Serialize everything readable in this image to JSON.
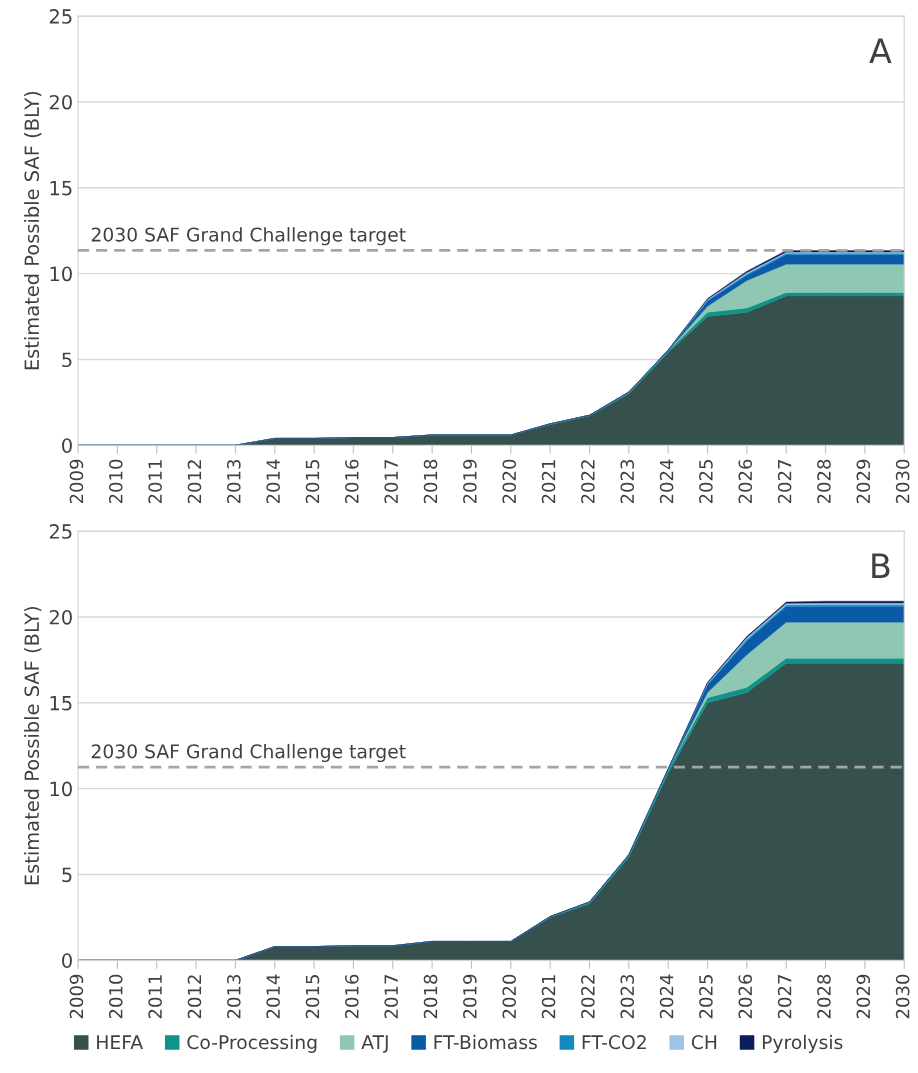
{
  "chart_data": [
    {
      "type": "area",
      "stacked": true,
      "ylabel": "Estimated Possible SAF (BLY)",
      "annotations": [
        "A"
      ],
      "categories": [
        "2009",
        "2010",
        "2011",
        "2012",
        "2013",
        "2014",
        "2015",
        "2016",
        "2017",
        "2018",
        "2019",
        "2020",
        "2021",
        "2022",
        "2023",
        "2024",
        "2025",
        "2026",
        "2027",
        "2028",
        "2029",
        "2030"
      ],
      "ylim": [
        0,
        25
      ],
      "yticks": [
        0,
        5,
        10,
        15,
        20,
        25
      ],
      "grid": "y",
      "legend": "bottom",
      "ref_lines": [
        {
          "axis": "y",
          "value": 11.35,
          "label": "2030 SAF Grand Challenge target",
          "color": "#a6a6a6",
          "line_style": "dashed"
        }
      ],
      "series": [
        {
          "name": "HEFA",
          "color": "#36504e",
          "values": [
            0,
            0,
            0,
            0,
            0,
            0.4,
            0.4,
            0.45,
            0.45,
            0.6,
            0.6,
            0.6,
            1.2,
            1.7,
            3.0,
            5.4,
            7.5,
            7.75,
            8.7,
            8.7,
            8.7,
            8.7
          ]
        },
        {
          "name": "Co-Processing",
          "color": "#0e9488",
          "values": [
            0,
            0,
            0,
            0,
            0,
            0,
            0,
            0,
            0,
            0,
            0,
            0,
            0.05,
            0.05,
            0.1,
            0.1,
            0.25,
            0.25,
            0.2,
            0.2,
            0.2,
            0.2
          ]
        },
        {
          "name": "ATJ",
          "color": "#8fc8b2",
          "values": [
            0,
            0,
            0,
            0,
            0,
            0,
            0,
            0,
            0,
            0,
            0,
            0,
            0,
            0,
            0,
            0,
            0.35,
            1.6,
            1.65,
            1.65,
            1.65,
            1.65
          ]
        },
        {
          "name": "FT-Biomass",
          "color": "#0a5aa8",
          "values": [
            0,
            0,
            0,
            0,
            0,
            0,
            0,
            0,
            0,
            0,
            0,
            0,
            0,
            0,
            0,
            0.05,
            0.3,
            0.3,
            0.55,
            0.55,
            0.55,
            0.55
          ]
        },
        {
          "name": "FT-CO2",
          "color": "#1688c0",
          "values": [
            0,
            0,
            0,
            0,
            0,
            0,
            0,
            0,
            0,
            0,
            0,
            0,
            0,
            0,
            0,
            0,
            0.05,
            0.08,
            0.08,
            0.08,
            0.08,
            0.08
          ]
        },
        {
          "name": "CH",
          "color": "#9dc3e6",
          "values": [
            0,
            0,
            0,
            0,
            0,
            0,
            0,
            0,
            0,
            0,
            0,
            0,
            0,
            0,
            0,
            0,
            0.05,
            0.08,
            0.08,
            0.08,
            0.08,
            0.08
          ]
        },
        {
          "name": "Pyrolysis",
          "color": "#0b1f5c",
          "values": [
            0,
            0,
            0,
            0,
            0,
            0,
            0,
            0,
            0,
            0,
            0,
            0,
            0,
            0,
            0,
            0,
            0.05,
            0.08,
            0.08,
            0.08,
            0.08,
            0.08
          ]
        }
      ]
    },
    {
      "type": "area",
      "stacked": true,
      "ylabel": "Estimated Possible SAF (BLY)",
      "annotations": [
        "B"
      ],
      "categories": [
        "2009",
        "2010",
        "2011",
        "2012",
        "2013",
        "2014",
        "2015",
        "2016",
        "2017",
        "2018",
        "2019",
        "2020",
        "2021",
        "2022",
        "2023",
        "2024",
        "2025",
        "2026",
        "2027",
        "2028",
        "2029",
        "2030"
      ],
      "ylim": [
        0,
        25
      ],
      "yticks": [
        0,
        5,
        10,
        15,
        20,
        25
      ],
      "grid": "y",
      "legend": "bottom",
      "ref_lines": [
        {
          "axis": "y",
          "value": 11.25,
          "label": "2030 SAF Grand Challenge target",
          "color": "#a6a6a6",
          "line_style": "dashed"
        }
      ],
      "series": [
        {
          "name": "HEFA",
          "color": "#36504e",
          "values": [
            0,
            0,
            0,
            0,
            0,
            0.8,
            0.8,
            0.85,
            0.85,
            1.1,
            1.1,
            1.1,
            2.5,
            3.3,
            6.0,
            10.9,
            15.0,
            15.6,
            17.3,
            17.3,
            17.3,
            17.3
          ]
        },
        {
          "name": "Co-Processing",
          "color": "#0e9488",
          "values": [
            0,
            0,
            0,
            0,
            0,
            0,
            0,
            0,
            0,
            0,
            0,
            0,
            0.05,
            0.1,
            0.15,
            0.2,
            0.3,
            0.3,
            0.3,
            0.3,
            0.3,
            0.3
          ]
        },
        {
          "name": "ATJ",
          "color": "#8fc8b2",
          "values": [
            0,
            0,
            0,
            0,
            0,
            0,
            0,
            0,
            0,
            0,
            0,
            0,
            0,
            0,
            0,
            0,
            0.3,
            1.9,
            2.1,
            2.1,
            2.1,
            2.1
          ]
        },
        {
          "name": "FT-Biomass",
          "color": "#0a5aa8",
          "values": [
            0,
            0,
            0,
            0,
            0,
            0,
            0,
            0,
            0,
            0,
            0,
            0,
            0,
            0,
            0,
            0.05,
            0.45,
            0.8,
            0.9,
            0.9,
            0.9,
            0.9
          ]
        },
        {
          "name": "FT-CO2",
          "color": "#1688c0",
          "values": [
            0,
            0,
            0,
            0,
            0,
            0,
            0,
            0,
            0,
            0,
            0,
            0,
            0,
            0,
            0,
            0,
            0.05,
            0.1,
            0.1,
            0.12,
            0.12,
            0.12
          ]
        },
        {
          "name": "CH",
          "color": "#9dc3e6",
          "values": [
            0,
            0,
            0,
            0,
            0,
            0,
            0,
            0,
            0,
            0,
            0,
            0,
            0,
            0,
            0,
            0,
            0.05,
            0.1,
            0.1,
            0.1,
            0.1,
            0.1
          ]
        },
        {
          "name": "Pyrolysis",
          "color": "#0b1f5c",
          "values": [
            0,
            0,
            0,
            0,
            0,
            0,
            0,
            0,
            0,
            0,
            0,
            0,
            0,
            0,
            0,
            0,
            0.05,
            0.07,
            0.07,
            0.1,
            0.1,
            0.1
          ]
        }
      ]
    }
  ]
}
